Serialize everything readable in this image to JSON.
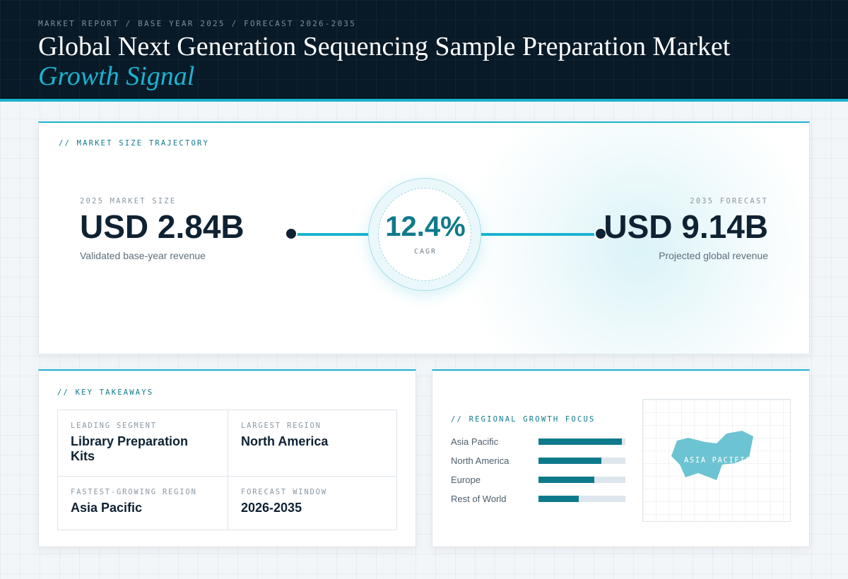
{
  "header": {
    "eyebrow": "MARKET REPORT / BASE YEAR 2025 / FORECAST 2026-2035",
    "title": "Global Next Generation Sequencing Sample Preparation Market",
    "subtitle": "Growth Signal"
  },
  "trajectory": {
    "label": "// MARKET SIZE TRAJECTORY",
    "base": {
      "label": "2025 MARKET SIZE",
      "value": "USD 2.84B",
      "description": "Validated base-year revenue"
    },
    "cagr": {
      "value": "12.4%",
      "label": "CAGR"
    },
    "forecast": {
      "label": "2035 FORECAST",
      "value": "USD 9.14B",
      "description": "Projected global revenue"
    }
  },
  "takeaways": {
    "label": "// KEY TAKEAWAYS",
    "items": [
      {
        "label": "LEADING SEGMENT",
        "value": "Library Preparation Kits"
      },
      {
        "label": "LARGEST REGION",
        "value": "North America"
      },
      {
        "label": "FASTEST-GROWING REGION",
        "value": "Asia Pacific"
      },
      {
        "label": "FORECAST WINDOW",
        "value": "2026-2035"
      }
    ]
  },
  "regional": {
    "label": "// REGIONAL GROWTH FOCUS",
    "bars": [
      {
        "name": "Asia Pacific",
        "level": 0.96
      },
      {
        "name": "North America",
        "level": 0.72
      },
      {
        "name": "Europe",
        "level": 0.64
      },
      {
        "name": "Rest of World",
        "level": 0.46
      }
    ],
    "map_label": "ASIA PACIFIC"
  },
  "colors": {
    "accent": "#1bb3cf",
    "accent_dark": "#0f7a8c",
    "header_bg": "#081a28",
    "map_fill": "#6cc4d2"
  }
}
